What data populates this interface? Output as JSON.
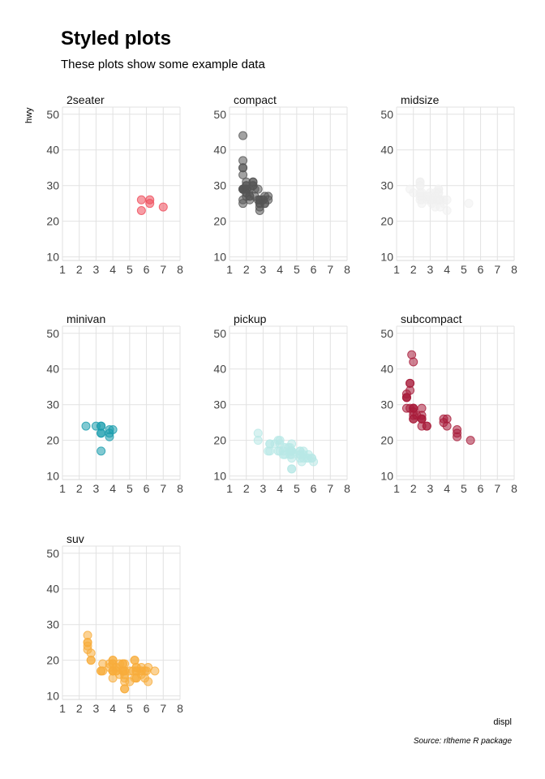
{
  "title": "Styled plots",
  "subtitle": "These plots show some example data",
  "caption": "Source: rltheme R package",
  "chart_data": {
    "type": "scatter",
    "facet_by": "class",
    "xlabel": "displ",
    "ylabel": "hwy",
    "xlim": [
      1,
      8
    ],
    "ylim": [
      10,
      50
    ],
    "x_ticks": [
      1,
      2,
      3,
      4,
      5,
      6,
      7,
      8
    ],
    "y_ticks": [
      10,
      20,
      30,
      40,
      50
    ],
    "grid": true,
    "layout": "3 columns, 3 rows",
    "panels": [
      {
        "name": "2seater",
        "color": "#ee4b5a",
        "points": [
          [
            5.7,
            26
          ],
          [
            5.7,
            23
          ],
          [
            6.2,
            26
          ],
          [
            6.2,
            25
          ],
          [
            7.0,
            24
          ]
        ]
      },
      {
        "name": "compact",
        "color": "#555555",
        "points": [
          [
            1.8,
            29
          ],
          [
            1.8,
            29
          ],
          [
            2.0,
            31
          ],
          [
            2.0,
            30
          ],
          [
            2.8,
            26
          ],
          [
            2.8,
            26
          ],
          [
            3.1,
            27
          ],
          [
            1.8,
            26
          ],
          [
            1.8,
            25
          ],
          [
            2.0,
            28
          ],
          [
            2.0,
            27
          ],
          [
            2.8,
            25
          ],
          [
            2.8,
            25
          ],
          [
            3.1,
            25
          ],
          [
            3.1,
            25
          ],
          [
            2.2,
            27
          ],
          [
            2.2,
            29
          ],
          [
            2.4,
            31
          ],
          [
            2.4,
            31
          ],
          [
            3.0,
            26
          ],
          [
            3.0,
            26
          ],
          [
            3.3,
            27
          ],
          [
            1.8,
            33
          ],
          [
            1.8,
            35
          ],
          [
            1.8,
            37
          ],
          [
            1.8,
            35
          ],
          [
            1.8,
            44
          ],
          [
            1.8,
            29
          ],
          [
            1.8,
            29
          ],
          [
            2.0,
            29
          ],
          [
            2.0,
            29
          ],
          [
            2.8,
            24
          ],
          [
            2.8,
            23
          ],
          [
            1.9,
            29
          ],
          [
            2.0,
            28
          ],
          [
            2.5,
            27
          ],
          [
            2.5,
            29
          ],
          [
            2.2,
            27
          ],
          [
            2.2,
            26
          ],
          [
            2.4,
            30
          ],
          [
            2.4,
            30
          ],
          [
            2.7,
            26
          ],
          [
            2.7,
            29
          ],
          [
            3.3,
            26
          ],
          [
            2.0,
            30
          ]
        ]
      },
      {
        "name": "midsize",
        "color": "#f0f0f0",
        "points": [
          [
            2.4,
            30
          ],
          [
            2.4,
            31
          ],
          [
            3.3,
            27
          ],
          [
            3.3,
            27
          ],
          [
            3.6,
            26
          ],
          [
            3.5,
            28
          ],
          [
            2.4,
            31
          ],
          [
            2.4,
            26
          ],
          [
            3.3,
            26
          ],
          [
            2.5,
            28
          ],
          [
            2.5,
            27
          ],
          [
            3.5,
            26
          ],
          [
            3.5,
            26
          ],
          [
            3.0,
            26
          ],
          [
            3.0,
            28
          ],
          [
            2.4,
            31
          ],
          [
            2.4,
            27
          ],
          [
            3.1,
            26
          ],
          [
            3.5,
            29
          ],
          [
            3.6,
            26
          ],
          [
            3.8,
            26
          ],
          [
            4.0,
            23
          ],
          [
            5.3,
            25
          ],
          [
            3.0,
            26
          ],
          [
            3.5,
            29
          ],
          [
            3.5,
            28
          ],
          [
            1.8,
            29
          ],
          [
            2.0,
            28
          ],
          [
            2.8,
            26
          ],
          [
            3.1,
            25
          ],
          [
            3.3,
            24
          ],
          [
            3.8,
            25
          ],
          [
            2.4,
            30
          ],
          [
            2.5,
            26
          ],
          [
            3.0,
            27
          ],
          [
            3.3,
            28
          ],
          [
            2.4,
            28
          ],
          [
            2.5,
            25
          ],
          [
            2.8,
            27
          ],
          [
            3.6,
            24
          ],
          [
            4.0,
            26
          ]
        ]
      },
      {
        "name": "minivan",
        "color": "#1a9cad",
        "points": [
          [
            2.4,
            24
          ],
          [
            3.0,
            24
          ],
          [
            3.3,
            22
          ],
          [
            3.3,
            22
          ],
          [
            3.3,
            24
          ],
          [
            3.3,
            24
          ],
          [
            3.3,
            17
          ],
          [
            3.8,
            22
          ],
          [
            3.8,
            21
          ],
          [
            3.8,
            23
          ],
          [
            4.0,
            23
          ]
        ]
      },
      {
        "name": "pickup",
        "color": "#b8e8e6",
        "points": [
          [
            2.7,
            20
          ],
          [
            2.7,
            22
          ],
          [
            3.4,
            17
          ],
          [
            3.4,
            19
          ],
          [
            3.9,
            20
          ],
          [
            4.2,
            17
          ],
          [
            4.7,
            17
          ],
          [
            4.7,
            12
          ],
          [
            4.7,
            17
          ],
          [
            4.7,
            19
          ],
          [
            4.7,
            12
          ],
          [
            4.7,
            17
          ],
          [
            5.2,
            16
          ],
          [
            5.2,
            16
          ],
          [
            5.7,
            16
          ],
          [
            5.9,
            15
          ],
          [
            4.7,
            17
          ],
          [
            5.2,
            15
          ],
          [
            5.7,
            15
          ],
          [
            4.6,
            17
          ],
          [
            5.4,
            17
          ],
          [
            5.4,
            15
          ],
          [
            3.9,
            17
          ],
          [
            4.3,
            16
          ],
          [
            4.7,
            16
          ],
          [
            4.7,
            17
          ],
          [
            5.6,
            15
          ],
          [
            5.2,
            17
          ],
          [
            5.2,
            17
          ],
          [
            5.3,
            14
          ],
          [
            5.9,
            15
          ],
          [
            3.4,
            19
          ],
          [
            4.0,
            17
          ],
          [
            4.0,
            19
          ],
          [
            4.6,
            18
          ],
          [
            4.2,
            16
          ],
          [
            6.0,
            14
          ],
          [
            4.5,
            18
          ],
          [
            4.6,
            16
          ],
          [
            4.0,
            20
          ],
          [
            4.3,
            18
          ],
          [
            4.7,
            15
          ],
          [
            5.4,
            16
          ],
          [
            3.7,
            19
          ],
          [
            3.3,
            17
          ]
        ]
      },
      {
        "name": "subcompact",
        "color": "#a81c3a",
        "points": [
          [
            3.8,
            26
          ],
          [
            3.8,
            25
          ],
          [
            4.0,
            26
          ],
          [
            4.0,
            24
          ],
          [
            4.6,
            21
          ],
          [
            4.6,
            22
          ],
          [
            4.6,
            23
          ],
          [
            5.4,
            20
          ],
          [
            1.6,
            33
          ],
          [
            1.6,
            32
          ],
          [
            1.6,
            32
          ],
          [
            1.6,
            29
          ],
          [
            1.6,
            32
          ],
          [
            1.8,
            34
          ],
          [
            1.8,
            36
          ],
          [
            1.8,
            36
          ],
          [
            2.0,
            29
          ],
          [
            2.0,
            26
          ],
          [
            2.0,
            27
          ],
          [
            2.0,
            29
          ],
          [
            2.0,
            29
          ],
          [
            2.0,
            26
          ],
          [
            2.0,
            42
          ],
          [
            1.9,
            44
          ],
          [
            2.5,
            29
          ],
          [
            2.5,
            26
          ],
          [
            2.5,
            27
          ],
          [
            2.8,
            24
          ],
          [
            2.8,
            24
          ],
          [
            1.8,
            29
          ],
          [
            2.2,
            27
          ],
          [
            2.5,
            26
          ],
          [
            2.5,
            24
          ],
          [
            2.5,
            26
          ],
          [
            2.0,
            28
          ]
        ]
      },
      {
        "name": "suv",
        "color": "#f8ad3c",
        "points": [
          [
            5.3,
            20
          ],
          [
            5.3,
            15
          ],
          [
            5.3,
            20
          ],
          [
            5.7,
            17
          ],
          [
            6.5,
            17
          ],
          [
            4.7,
            12
          ],
          [
            4.7,
            17
          ],
          [
            4.7,
            19
          ],
          [
            5.2,
            17
          ],
          [
            5.7,
            17
          ],
          [
            5.9,
            15
          ],
          [
            4.0,
            17
          ],
          [
            4.0,
            17
          ],
          [
            4.6,
            17
          ],
          [
            5.0,
            17
          ],
          [
            4.2,
            17
          ],
          [
            4.2,
            18
          ],
          [
            4.6,
            17
          ],
          [
            4.6,
            19
          ],
          [
            5.4,
            17
          ],
          [
            5.4,
            15
          ],
          [
            3.8,
            19
          ],
          [
            3.8,
            18
          ],
          [
            4.0,
            20
          ],
          [
            4.7,
            14
          ],
          [
            4.7,
            15
          ],
          [
            5.7,
            18
          ],
          [
            6.1,
            18
          ],
          [
            4.0,
            19
          ],
          [
            4.2,
            17
          ],
          [
            4.4,
            16
          ],
          [
            4.6,
            17
          ],
          [
            5.4,
            15
          ],
          [
            5.4,
            18
          ],
          [
            3.3,
            17
          ],
          [
            4.0,
            17
          ],
          [
            4.0,
            19
          ],
          [
            4.2,
            18
          ],
          [
            4.4,
            19
          ],
          [
            5.4,
            17
          ],
          [
            5.9,
            17
          ],
          [
            6.1,
            14
          ],
          [
            2.5,
            27
          ],
          [
            2.5,
            25
          ],
          [
            2.5,
            25
          ],
          [
            2.5,
            24
          ],
          [
            2.5,
            23
          ],
          [
            2.7,
            22
          ],
          [
            2.7,
            20
          ],
          [
            2.7,
            20
          ],
          [
            3.4,
            19
          ],
          [
            3.4,
            17
          ],
          [
            4.0,
            15
          ],
          [
            4.7,
            16
          ],
          [
            4.7,
            17
          ],
          [
            5.7,
            16
          ],
          [
            6.0,
            17
          ],
          [
            4.0,
            20
          ],
          [
            4.0,
            17
          ],
          [
            4.6,
            19
          ],
          [
            5.0,
            14
          ],
          [
            3.3,
            17
          ],
          [
            4.7,
            12
          ],
          [
            5.4,
            18
          ]
        ]
      }
    ]
  }
}
